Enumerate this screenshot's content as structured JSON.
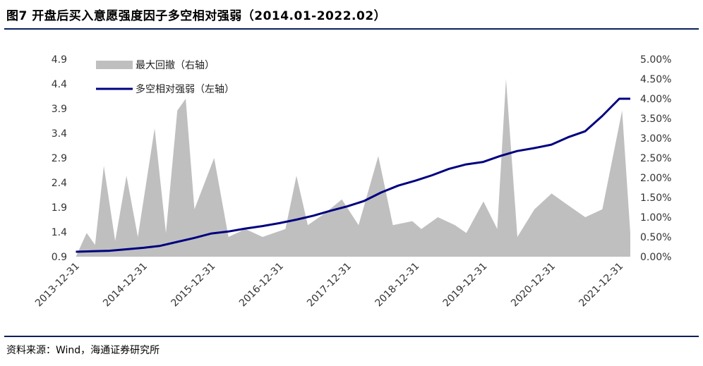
{
  "title": "图7  开盘后买入意愿强度因子多空相对强弱（2014.01-2022.02）",
  "source": "资料来源：Wind，海通证券研究所",
  "colors": {
    "line": "#000080",
    "area": "#bfbfbf",
    "rule": "#0b1f5c"
  },
  "chart_data": {
    "type": "line",
    "legend_position": "top-left",
    "grid": false,
    "x_tick_labels": [
      "2013-12-31",
      "2014-12-31",
      "2015-12-31",
      "2016-12-31",
      "2017-12-31",
      "2018-12-31",
      "2019-12-31",
      "2020-12-31",
      "2021-12-31"
    ],
    "x_range": [
      "2013-12-31",
      "2022-02-28"
    ],
    "left_axis": {
      "min": 0.9,
      "max": 4.9,
      "ticks": [
        "0.9",
        "1.4",
        "1.9",
        "2.4",
        "2.9",
        "3.4",
        "3.9",
        "4.4",
        "4.9"
      ]
    },
    "right_axis": {
      "min": 0,
      "max": 5,
      "ticks": [
        "0.00%",
        "0.50%",
        "1.00%",
        "1.50%",
        "2.00%",
        "2.50%",
        "3.00%",
        "3.50%",
        "4.00%",
        "4.50%",
        "5.00%"
      ]
    },
    "series": [
      {
        "name": "多空相对强弱（左轴）",
        "type": "line",
        "axis": "left",
        "points": [
          [
            "2014-01-02",
            1.0
          ],
          [
            "2014-04-01",
            1.01
          ],
          [
            "2014-06-30",
            1.02
          ],
          [
            "2014-09-30",
            1.05
          ],
          [
            "2014-12-31",
            1.08
          ],
          [
            "2015-03-31",
            1.12
          ],
          [
            "2015-06-30",
            1.2
          ],
          [
            "2015-09-30",
            1.28
          ],
          [
            "2015-12-31",
            1.37
          ],
          [
            "2016-03-31",
            1.41
          ],
          [
            "2016-06-30",
            1.47
          ],
          [
            "2016-09-30",
            1.52
          ],
          [
            "2016-12-31",
            1.58
          ],
          [
            "2017-03-31",
            1.65
          ],
          [
            "2017-06-30",
            1.73
          ],
          [
            "2017-09-30",
            1.83
          ],
          [
            "2017-12-31",
            1.92
          ],
          [
            "2018-03-31",
            2.03
          ],
          [
            "2018-06-30",
            2.2
          ],
          [
            "2018-09-30",
            2.34
          ],
          [
            "2018-12-31",
            2.44
          ],
          [
            "2019-03-31",
            2.55
          ],
          [
            "2019-06-30",
            2.68
          ],
          [
            "2019-09-30",
            2.77
          ],
          [
            "2019-12-31",
            2.82
          ],
          [
            "2020-03-31",
            2.94
          ],
          [
            "2020-06-30",
            3.04
          ],
          [
            "2020-09-30",
            3.1
          ],
          [
            "2020-12-31",
            3.17
          ],
          [
            "2021-03-31",
            3.32
          ],
          [
            "2021-06-30",
            3.44
          ],
          [
            "2021-09-30",
            3.75
          ],
          [
            "2021-12-31",
            4.1
          ],
          [
            "2022-02-28",
            4.1
          ]
        ]
      },
      {
        "name": "最大回撤（右轴）",
        "type": "area",
        "axis": "right",
        "points": [
          [
            "2014-01-02",
            0.0
          ],
          [
            "2014-03-01",
            0.6
          ],
          [
            "2014-04-15",
            0.3
          ],
          [
            "2014-06-01",
            2.3
          ],
          [
            "2014-08-01",
            0.4
          ],
          [
            "2014-10-01",
            2.05
          ],
          [
            "2014-12-01",
            0.5
          ],
          [
            "2015-03-01",
            3.25
          ],
          [
            "2015-05-01",
            0.6
          ],
          [
            "2015-07-01",
            3.7
          ],
          [
            "2015-08-15",
            4.0
          ],
          [
            "2015-10-01",
            1.2
          ],
          [
            "2016-01-15",
            2.5
          ],
          [
            "2016-04-01",
            0.5
          ],
          [
            "2016-07-01",
            0.7
          ],
          [
            "2016-10-01",
            0.5
          ],
          [
            "2017-02-01",
            0.7
          ],
          [
            "2017-04-01",
            2.05
          ],
          [
            "2017-06-01",
            0.8
          ],
          [
            "2017-09-01",
            1.1
          ],
          [
            "2017-12-01",
            1.45
          ],
          [
            "2018-03-01",
            0.8
          ],
          [
            "2018-06-15",
            2.55
          ],
          [
            "2018-09-01",
            0.8
          ],
          [
            "2018-12-15",
            0.9
          ],
          [
            "2019-02-01",
            0.7
          ],
          [
            "2019-05-01",
            1.0
          ],
          [
            "2019-08-01",
            0.8
          ],
          [
            "2019-10-01",
            0.6
          ],
          [
            "2020-01-01",
            1.4
          ],
          [
            "2020-03-15",
            0.7
          ],
          [
            "2020-05-01",
            4.5
          ],
          [
            "2020-07-01",
            0.5
          ],
          [
            "2020-10-01",
            1.2
          ],
          [
            "2021-01-01",
            1.6
          ],
          [
            "2021-04-01",
            1.3
          ],
          [
            "2021-07-01",
            1.0
          ],
          [
            "2021-10-01",
            1.2
          ],
          [
            "2022-01-15",
            3.7
          ],
          [
            "2022-02-28",
            0.6
          ]
        ]
      }
    ]
  }
}
